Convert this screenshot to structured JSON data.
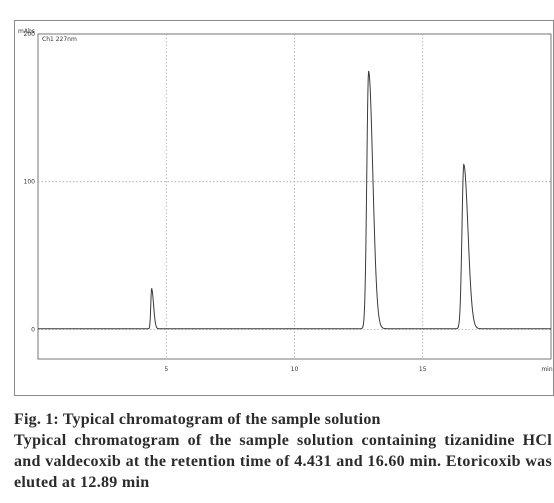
{
  "watermark": "...",
  "chart_data": {
    "type": "line",
    "xlim": [
      0,
      20
    ],
    "ylim": [
      -20,
      200
    ],
    "x_ticks": [
      {
        "value": 5,
        "label": "5"
      },
      {
        "value": 10,
        "label": "10"
      },
      {
        "value": 15,
        "label": "15"
      },
      {
        "value": 20,
        "label": "min"
      }
    ],
    "y_ticks": [
      {
        "value": 0,
        "label": "0"
      },
      {
        "value": 100,
        "label": "100"
      },
      {
        "value": 200,
        "label": "200"
      }
    ],
    "ylabel": "mAbs",
    "legend_label": "Ch1 227nm",
    "grid": true,
    "series": [
      {
        "name": "Ch1 227nm",
        "baseline": 0.5,
        "peaks": [
          {
            "rt": 4.43,
            "height": 27,
            "width": 0.06
          },
          {
            "rt": 12.89,
            "height": 174,
            "width": 0.13
          },
          {
            "rt": 16.6,
            "height": 111,
            "width": 0.13
          }
        ],
        "x_range": [
          0,
          20
        ]
      }
    ]
  },
  "caption": {
    "title": "Fig. 1: Typical chromatogram of the sample solution",
    "body": "Typical chromatogram of the sample solution containing tizanidine HCl and valdecoxib at the retention time of 4.431 and 16.60 min. Etoricoxib was eluted at 12.89 min"
  }
}
